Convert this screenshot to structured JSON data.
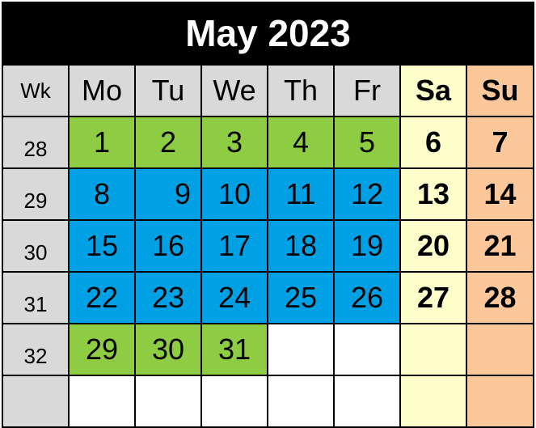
{
  "title": "May 2023",
  "headers": {
    "wk": "Wk",
    "mo": "Mo",
    "tu": "Tu",
    "we": "We",
    "th": "Th",
    "fr": "Fr",
    "sa": "Sa",
    "su": "Su"
  },
  "colors": {
    "green": "#8dcc43",
    "blue": "#00a0e4",
    "gray": "#d9d9d9",
    "saturday": "#ffffcc",
    "sunday": "#fcc89b"
  },
  "weeks": [
    {
      "wk": "28",
      "days": [
        "1",
        "2",
        "3",
        "4",
        "5",
        "6",
        "7"
      ]
    },
    {
      "wk": "29",
      "days": [
        "8",
        "9",
        "10",
        "11",
        "12",
        "13",
        "14"
      ]
    },
    {
      "wk": "30",
      "days": [
        "15",
        "16",
        "17",
        "18",
        "19",
        "20",
        "21"
      ]
    },
    {
      "wk": "31",
      "days": [
        "22",
        "23",
        "24",
        "25",
        "26",
        "27",
        "28"
      ]
    },
    {
      "wk": "32",
      "days": [
        "29",
        "30",
        "31",
        "",
        "",
        "",
        ""
      ]
    },
    {
      "wk": "",
      "days": [
        "",
        "",
        "",
        "",
        "",
        "",
        ""
      ]
    }
  ]
}
